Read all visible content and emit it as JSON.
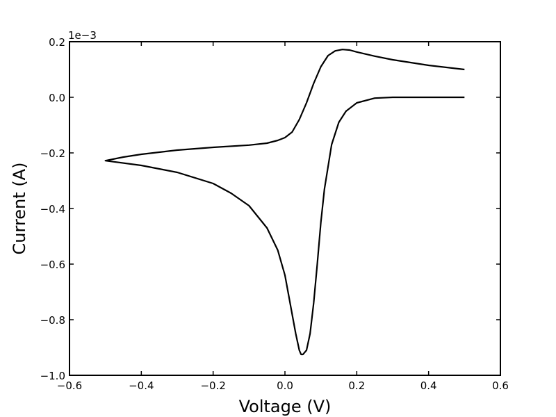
{
  "chart_data": {
    "type": "line",
    "xlabel": "Voltage (V)",
    "ylabel": "Current (A)",
    "y_offset_text": "1e−3",
    "xlim": [
      -0.6,
      0.6
    ],
    "xticks": [
      {
        "value": -0.6,
        "label": "−0.6"
      },
      {
        "value": -0.4,
        "label": "−0.4"
      },
      {
        "value": -0.2,
        "label": "−0.2"
      },
      {
        "value": 0,
        "label": "0.0"
      },
      0.2,
      0.4,
      0.6
    ],
    "ylim": [
      -1.0,
      0.2
    ],
    "yticks": [
      {
        "value": -1.0,
        "label": "−1.0"
      },
      {
        "value": -0.8,
        "label": "−0.8"
      },
      {
        "value": -0.6,
        "label": "−0.6"
      },
      {
        "value": -0.4,
        "label": "−0.4"
      },
      {
        "value": -0.2,
        "label": "−0.2"
      },
      {
        "value": 0,
        "label": "0.0"
      },
      0.2
    ],
    "grid": false,
    "series": [
      {
        "color": "#000000",
        "x": [
          0.5,
          0.4,
          0.3,
          0.25,
          0.2,
          0.17,
          0.15,
          0.13,
          0.11,
          0.1,
          0.09,
          0.08,
          0.07,
          0.06,
          0.05,
          0.045,
          0.04,
          0.03,
          0.02,
          0.01,
          0.0,
          -0.02,
          -0.05,
          -0.1,
          -0.15,
          -0.2,
          -0.3,
          -0.4,
          -0.5,
          -0.45,
          -0.4,
          -0.3,
          -0.2,
          -0.1,
          -0.05,
          -0.02,
          0.0,
          0.02,
          0.04,
          0.06,
          0.08,
          0.1,
          0.12,
          0.14,
          0.16,
          0.18,
          0.2,
          0.25,
          0.3,
          0.4,
          0.5
        ],
        "values": [
          0.0,
          0.0,
          0.0,
          -0.003,
          -0.02,
          -0.05,
          -0.09,
          -0.17,
          -0.33,
          -0.45,
          -0.6,
          -0.74,
          -0.85,
          -0.91,
          -0.925,
          -0.925,
          -0.91,
          -0.85,
          -0.78,
          -0.71,
          -0.64,
          -0.55,
          -0.47,
          -0.39,
          -0.345,
          -0.31,
          -0.27,
          -0.245,
          -0.228,
          -0.215,
          -0.205,
          -0.19,
          -0.18,
          -0.172,
          -0.165,
          -0.155,
          -0.145,
          -0.125,
          -0.08,
          -0.02,
          0.05,
          0.11,
          0.15,
          0.167,
          0.172,
          0.17,
          0.163,
          0.148,
          0.135,
          0.115,
          0.1
        ]
      }
    ]
  }
}
